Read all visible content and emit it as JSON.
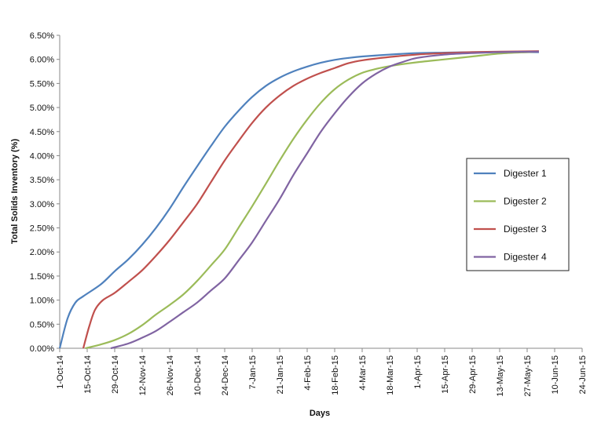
{
  "chart_data": {
    "type": "line",
    "title": "",
    "xlabel": "Days",
    "ylabel": "Total Solids Inventory (%)",
    "ylim": [
      0,
      6.5
    ],
    "y_ticks": [
      "0.00%",
      "0.50%",
      "1.00%",
      "1.50%",
      "2.00%",
      "2.50%",
      "3.00%",
      "3.50%",
      "4.00%",
      "4.50%",
      "5.00%",
      "5.50%",
      "6.00%",
      "6.50%"
    ],
    "x_range": [
      "2014-10-01",
      "2015-06-24"
    ],
    "x_ticks": [
      {
        "date": "2014-10-01",
        "label": "1-Oct-14"
      },
      {
        "date": "2014-10-15",
        "label": "15-Oct-14"
      },
      {
        "date": "2014-10-29",
        "label": "29-Oct-14"
      },
      {
        "date": "2014-11-12",
        "label": "12-Nov-14"
      },
      {
        "date": "2014-11-26",
        "label": "26-Nov-14"
      },
      {
        "date": "2014-12-10",
        "label": "10-Dec-14"
      },
      {
        "date": "2014-12-24",
        "label": "24-Dec-14"
      },
      {
        "date": "2015-01-07",
        "label": "7-Jan-15"
      },
      {
        "date": "2015-01-21",
        "label": "21-Jan-15"
      },
      {
        "date": "2015-02-04",
        "label": "4-Feb-15"
      },
      {
        "date": "2015-02-18",
        "label": "18-Feb-15"
      },
      {
        "date": "2015-03-04",
        "label": "4-Mar-15"
      },
      {
        "date": "2015-03-18",
        "label": "18-Mar-15"
      },
      {
        "date": "2015-04-01",
        "label": "1-Apr-15"
      },
      {
        "date": "2015-04-15",
        "label": "15-Apr-15"
      },
      {
        "date": "2015-04-29",
        "label": "29-Apr-15"
      },
      {
        "date": "2015-05-13",
        "label": "13-May-15"
      },
      {
        "date": "2015-05-27",
        "label": "27-May-15"
      },
      {
        "date": "2015-06-10",
        "label": "10-Jun-15"
      },
      {
        "date": "2015-06-24",
        "label": "24-Jun-15"
      }
    ],
    "grid": false,
    "legend_position": "right",
    "series": [
      {
        "name": "Digester 1",
        "color": "#4F81BD",
        "points": [
          [
            "2014-10-01",
            0.0
          ],
          [
            "2014-10-05",
            0.62
          ],
          [
            "2014-10-09",
            0.95
          ],
          [
            "2014-10-13",
            1.08
          ],
          [
            "2014-10-22",
            1.33
          ],
          [
            "2014-10-29",
            1.6
          ],
          [
            "2014-11-05",
            1.85
          ],
          [
            "2014-11-12",
            2.15
          ],
          [
            "2014-11-19",
            2.5
          ],
          [
            "2014-11-26",
            2.9
          ],
          [
            "2014-12-03",
            3.35
          ],
          [
            "2014-12-10",
            3.78
          ],
          [
            "2014-12-17",
            4.2
          ],
          [
            "2014-12-24",
            4.6
          ],
          [
            "2014-12-31",
            4.93
          ],
          [
            "2015-01-07",
            5.22
          ],
          [
            "2015-01-14",
            5.45
          ],
          [
            "2015-01-21",
            5.62
          ],
          [
            "2015-01-28",
            5.75
          ],
          [
            "2015-02-04",
            5.85
          ],
          [
            "2015-02-11",
            5.93
          ],
          [
            "2015-02-18",
            5.99
          ],
          [
            "2015-02-25",
            6.03
          ],
          [
            "2015-03-04",
            6.06
          ],
          [
            "2015-03-18",
            6.1
          ],
          [
            "2015-04-01",
            6.13
          ],
          [
            "2015-04-15",
            6.14
          ],
          [
            "2015-04-29",
            6.15
          ],
          [
            "2015-05-13",
            6.15
          ],
          [
            "2015-05-27",
            6.15
          ],
          [
            "2015-06-02",
            6.15
          ]
        ]
      },
      {
        "name": "Digester 2",
        "color": "#9BBB59",
        "points": [
          [
            "2014-10-14",
            0.0
          ],
          [
            "2014-10-22",
            0.08
          ],
          [
            "2014-10-29",
            0.17
          ],
          [
            "2014-11-05",
            0.3
          ],
          [
            "2014-11-12",
            0.48
          ],
          [
            "2014-11-19",
            0.7
          ],
          [
            "2014-11-26",
            0.9
          ],
          [
            "2014-12-03",
            1.12
          ],
          [
            "2014-12-10",
            1.4
          ],
          [
            "2014-12-17",
            1.72
          ],
          [
            "2014-12-24",
            2.05
          ],
          [
            "2014-12-31",
            2.5
          ],
          [
            "2015-01-07",
            2.95
          ],
          [
            "2015-01-14",
            3.42
          ],
          [
            "2015-01-21",
            3.9
          ],
          [
            "2015-01-28",
            4.35
          ],
          [
            "2015-02-04",
            4.75
          ],
          [
            "2015-02-11",
            5.1
          ],
          [
            "2015-02-18",
            5.38
          ],
          [
            "2015-02-25",
            5.58
          ],
          [
            "2015-03-04",
            5.72
          ],
          [
            "2015-03-11",
            5.8
          ],
          [
            "2015-03-18",
            5.86
          ],
          [
            "2015-04-01",
            5.94
          ],
          [
            "2015-04-15",
            6.0
          ],
          [
            "2015-04-29",
            6.06
          ],
          [
            "2015-05-13",
            6.12
          ],
          [
            "2015-05-27",
            6.15
          ],
          [
            "2015-06-02",
            6.16
          ]
        ]
      },
      {
        "name": "Digester 3",
        "color": "#C0504D",
        "points": [
          [
            "2014-10-13",
            0.0
          ],
          [
            "2014-10-16",
            0.45
          ],
          [
            "2014-10-19",
            0.8
          ],
          [
            "2014-10-23",
            1.0
          ],
          [
            "2014-10-29",
            1.15
          ],
          [
            "2014-11-05",
            1.38
          ],
          [
            "2014-11-12",
            1.62
          ],
          [
            "2014-11-19",
            1.92
          ],
          [
            "2014-11-26",
            2.25
          ],
          [
            "2014-12-03",
            2.62
          ],
          [
            "2014-12-10",
            3.0
          ],
          [
            "2014-12-17",
            3.45
          ],
          [
            "2014-12-24",
            3.9
          ],
          [
            "2014-12-31",
            4.3
          ],
          [
            "2015-01-07",
            4.68
          ],
          [
            "2015-01-14",
            5.0
          ],
          [
            "2015-01-21",
            5.25
          ],
          [
            "2015-01-28",
            5.45
          ],
          [
            "2015-02-04",
            5.6
          ],
          [
            "2015-02-11",
            5.72
          ],
          [
            "2015-02-18",
            5.82
          ],
          [
            "2015-02-25",
            5.92
          ],
          [
            "2015-03-04",
            5.98
          ],
          [
            "2015-03-18",
            6.05
          ],
          [
            "2015-04-01",
            6.1
          ],
          [
            "2015-04-15",
            6.13
          ],
          [
            "2015-04-29",
            6.15
          ],
          [
            "2015-05-13",
            6.16
          ],
          [
            "2015-06-02",
            6.17
          ]
        ]
      },
      {
        "name": "Digester 4",
        "color": "#8064A2",
        "points": [
          [
            "2014-10-27",
            0.0
          ],
          [
            "2014-11-05",
            0.1
          ],
          [
            "2014-11-12",
            0.22
          ],
          [
            "2014-11-19",
            0.36
          ],
          [
            "2014-11-26",
            0.55
          ],
          [
            "2014-12-03",
            0.75
          ],
          [
            "2014-12-10",
            0.95
          ],
          [
            "2014-12-17",
            1.2
          ],
          [
            "2014-12-24",
            1.45
          ],
          [
            "2014-12-31",
            1.82
          ],
          [
            "2015-01-07",
            2.2
          ],
          [
            "2015-01-14",
            2.65
          ],
          [
            "2015-01-21",
            3.1
          ],
          [
            "2015-01-28",
            3.6
          ],
          [
            "2015-02-04",
            4.05
          ],
          [
            "2015-02-11",
            4.5
          ],
          [
            "2015-02-18",
            4.88
          ],
          [
            "2015-02-25",
            5.22
          ],
          [
            "2015-03-04",
            5.5
          ],
          [
            "2015-03-11",
            5.7
          ],
          [
            "2015-03-18",
            5.85
          ],
          [
            "2015-03-25",
            5.95
          ],
          [
            "2015-04-01",
            6.03
          ],
          [
            "2015-04-15",
            6.1
          ],
          [
            "2015-04-29",
            6.13
          ],
          [
            "2015-05-13",
            6.15
          ],
          [
            "2015-06-02",
            6.16
          ]
        ]
      }
    ]
  }
}
